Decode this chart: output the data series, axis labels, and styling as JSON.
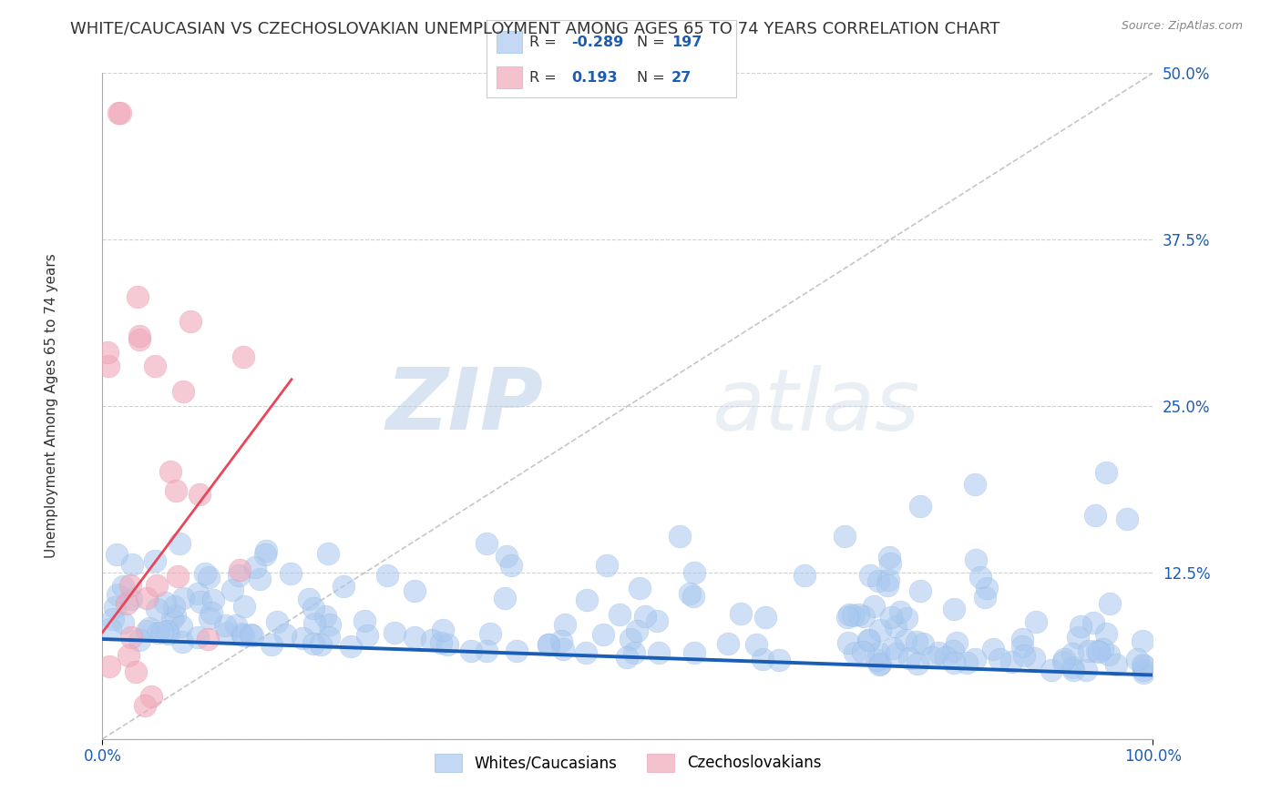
{
  "title": "WHITE/CAUCASIAN VS CZECHOSLOVAKIAN UNEMPLOYMENT AMONG AGES 65 TO 74 YEARS CORRELATION CHART",
  "source": "Source: ZipAtlas.com",
  "ylabel": "Unemployment Among Ages 65 to 74 years",
  "xlabel": "",
  "xlim": [
    0,
    1
  ],
  "ylim": [
    0,
    0.5
  ],
  "yticks": [
    0.0,
    0.125,
    0.25,
    0.375,
    0.5
  ],
  "ytick_labels_right": [
    "",
    "12.5%",
    "25.0%",
    "37.5%",
    "50.0%"
  ],
  "xtick_labels": [
    "0.0%",
    "100.0%"
  ],
  "blue_color": "#a8c8f0",
  "pink_color": "#f0a8b8",
  "blue_line_color": "#1a5db5",
  "pink_line_color": "#e8465a",
  "legend_blue_label": "Whites/Caucasians",
  "legend_pink_label": "Czechoslovakians",
  "R_blue": -0.289,
  "N_blue": 197,
  "R_pink": 0.193,
  "N_pink": 27,
  "watermark_zip": "ZIP",
  "watermark_atlas": "atlas",
  "blue_R_color": "#1a5db5",
  "grid_color": "#cccccc",
  "background_color": "#ffffff",
  "title_fontsize": 13,
  "axis_label_fontsize": 11,
  "tick_label_fontsize": 12,
  "legend_fontsize": 12,
  "blue_line_y_start": 0.075,
  "blue_line_y_end": 0.048,
  "pink_line_x_start": 0.0,
  "pink_line_x_end": 0.18,
  "pink_line_y_start": 0.08,
  "pink_line_y_end": 0.27
}
